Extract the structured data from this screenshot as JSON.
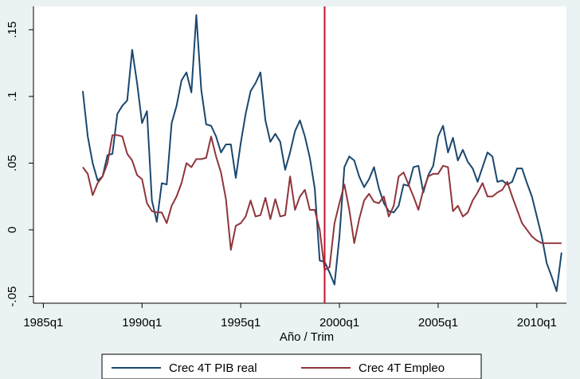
{
  "chart_data": {
    "type": "line",
    "x_label": "Año / Trim",
    "x": [
      "1987q1",
      "1987q2",
      "1987q3",
      "1987q4",
      "1988q1",
      "1988q2",
      "1988q3",
      "1988q4",
      "1989q1",
      "1989q2",
      "1989q3",
      "1989q4",
      "1990q1",
      "1990q2",
      "1990q3",
      "1990q4",
      "1991q1",
      "1991q2",
      "1991q3",
      "1991q4",
      "1992q1",
      "1992q2",
      "1992q3",
      "1992q4",
      "1993q1",
      "1993q2",
      "1993q3",
      "1993q4",
      "1994q1",
      "1994q2",
      "1994q3",
      "1994q4",
      "1995q1",
      "1995q2",
      "1995q3",
      "1995q4",
      "1996q1",
      "1996q2",
      "1996q3",
      "1996q4",
      "1997q1",
      "1997q2",
      "1997q3",
      "1997q4",
      "1998q1",
      "1998q2",
      "1998q3",
      "1998q4",
      "1999q1",
      "1999q2",
      "1999q3",
      "1999q4",
      "2000q1",
      "2000q2",
      "2000q3",
      "2000q4",
      "2001q1",
      "2001q2",
      "2001q3",
      "2001q4",
      "2002q1",
      "2002q2",
      "2002q3",
      "2002q4",
      "2003q1",
      "2003q2",
      "2003q3",
      "2003q4",
      "2004q1",
      "2004q2",
      "2004q3",
      "2004q4",
      "2005q1",
      "2005q2",
      "2005q3",
      "2005q4",
      "2006q1",
      "2006q2",
      "2006q3",
      "2006q4",
      "2007q1",
      "2007q2",
      "2007q3",
      "2007q4",
      "2008q1",
      "2008q2",
      "2008q3",
      "2008q4",
      "2009q1",
      "2009q2",
      "2009q3",
      "2009q4",
      "2010q1",
      "2010q2",
      "2010q3",
      "2010q4",
      "2011q1",
      "2011q2"
    ],
    "series": [
      {
        "name": "Crec 4T PIB real",
        "color": "#1a476f",
        "values": [
          0.104,
          0.07,
          0.05,
          0.037,
          0.04,
          0.056,
          0.057,
          0.087,
          0.093,
          0.097,
          0.135,
          0.11,
          0.08,
          0.089,
          0.022,
          0.006,
          0.035,
          0.034,
          0.08,
          0.093,
          0.112,
          0.118,
          0.103,
          0.161,
          0.105,
          0.079,
          0.078,
          0.07,
          0.058,
          0.064,
          0.064,
          0.039,
          0.065,
          0.087,
          0.104,
          0.11,
          0.118,
          0.082,
          0.066,
          0.072,
          0.066,
          0.045,
          0.058,
          0.074,
          0.082,
          0.07,
          0.054,
          0.031,
          -0.023,
          -0.024,
          -0.032,
          -0.041,
          -0.005,
          0.047,
          0.055,
          0.052,
          0.04,
          0.032,
          0.038,
          0.047,
          0.031,
          0.02,
          0.014,
          0.013,
          0.018,
          0.034,
          0.033,
          0.047,
          0.048,
          0.028,
          0.041,
          0.048,
          0.07,
          0.078,
          0.058,
          0.069,
          0.052,
          0.06,
          0.051,
          0.046,
          0.036,
          0.047,
          0.058,
          0.055,
          0.036,
          0.037,
          0.034,
          0.036,
          0.046,
          0.046,
          0.035,
          0.025,
          0.01,
          -0.005,
          -0.025,
          -0.035,
          -0.046,
          -0.017
        ]
      },
      {
        "name": "Crec 4T Empleo",
        "color": "#90353b",
        "values": [
          0.047,
          0.042,
          0.026,
          0.035,
          0.04,
          0.05,
          0.071,
          0.071,
          0.07,
          0.057,
          0.052,
          0.041,
          0.038,
          0.02,
          0.014,
          0.013,
          0.013,
          0.005,
          0.018,
          0.025,
          0.035,
          0.05,
          0.047,
          0.053,
          0.053,
          0.054,
          0.07,
          0.055,
          0.043,
          0.023,
          -0.015,
          0.003,
          0.005,
          0.01,
          0.022,
          0.01,
          0.011,
          0.024,
          0.008,
          0.023,
          0.01,
          0.011,
          0.04,
          0.015,
          0.025,
          0.03,
          0.015,
          0.015,
          0.0,
          -0.03,
          -0.028,
          0.005,
          0.02,
          0.034,
          0.015,
          -0.01,
          0.008,
          0.022,
          0.027,
          0.021,
          0.02,
          0.025,
          0.01,
          0.018,
          0.04,
          0.043,
          0.034,
          0.025,
          0.015,
          0.03,
          0.04,
          0.042,
          0.042,
          0.048,
          0.047,
          0.014,
          0.018,
          0.01,
          0.013,
          0.022,
          0.028,
          0.035,
          0.025,
          0.025,
          0.028,
          0.03,
          0.036,
          0.025,
          0.015,
          0.005,
          0.0,
          -0.005,
          -0.008,
          -0.01,
          -0.01,
          -0.01,
          -0.01,
          -0.01
        ]
      }
    ],
    "xlim": [
      "1984q3",
      "2011q3"
    ],
    "xticks": [
      "1985q1",
      "1990q1",
      "1995q1",
      "2000q1",
      "2005q1",
      "2010q1"
    ],
    "ylim": [
      -0.055,
      0.1675
    ],
    "yticks": [
      {
        "value": -0.05,
        "label": "-.05"
      },
      0,
      {
        "value": 0.05,
        "label": ".05"
      },
      {
        "value": 0.1,
        "label": ".1"
      },
      {
        "value": 0.15,
        "label": ".15"
      }
    ],
    "vline": "1999q2",
    "vline_color": "#c1122f",
    "grid": false,
    "legend": "bottom"
  }
}
